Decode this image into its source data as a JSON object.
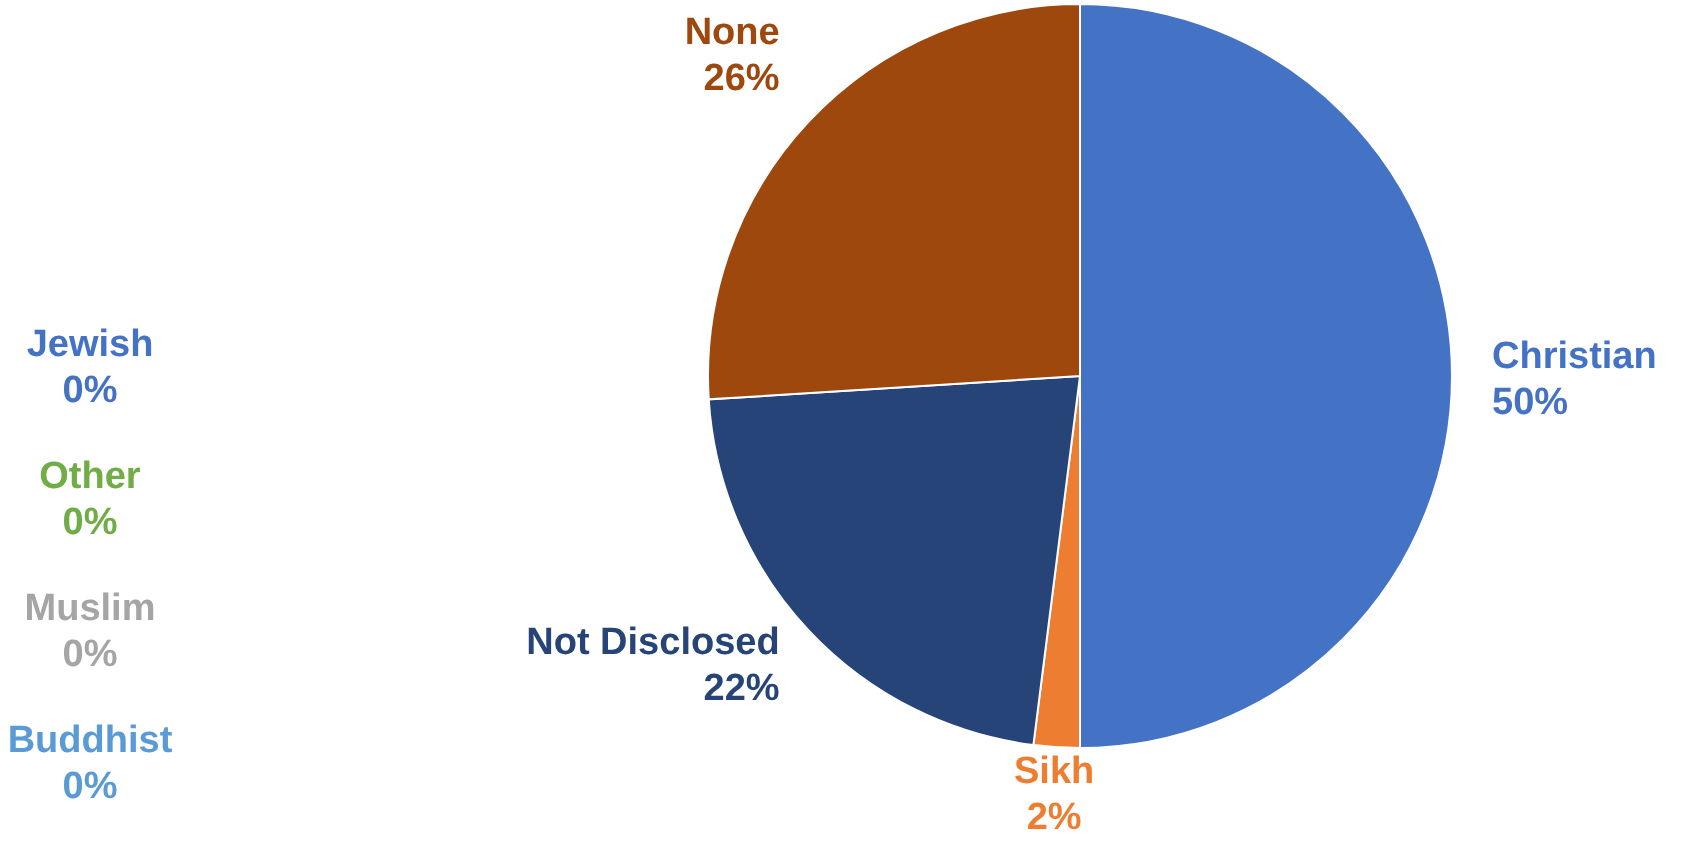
{
  "chart_data": {
    "type": "pie",
    "categories": [
      "Christian",
      "Sikh",
      "Not Disclosed",
      "None",
      "Buddhist",
      "Muslim",
      "Other",
      "Jewish"
    ],
    "values": [
      50,
      2,
      22,
      26,
      0,
      0,
      0,
      0
    ],
    "colors": [
      "#4472c4",
      "#ed7d31",
      "#264478",
      "#9e480e",
      "#5b9bd5",
      "#a5a5a5",
      "#70ad47",
      "#4472c4"
    ],
    "value_labels": [
      "50%",
      "2%",
      "22%",
      "26%",
      "0%",
      "0%",
      "0%",
      "0%"
    ]
  }
}
